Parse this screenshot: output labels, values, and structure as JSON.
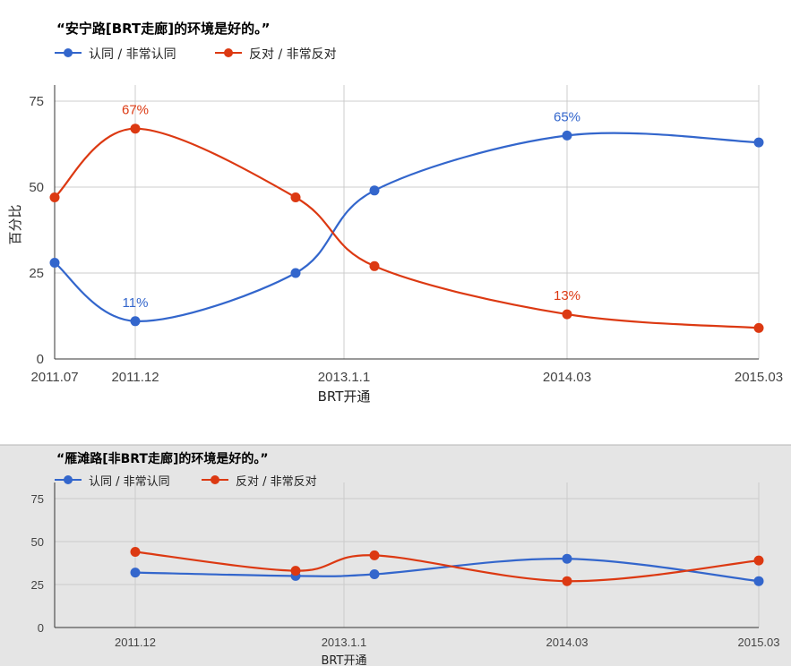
{
  "chart_data": [
    {
      "type": "line",
      "title": "“安宁路[BRT走廊]的环境是好的。”",
      "xlabel": "BRT开通",
      "ylabel": "百分比",
      "ylim": [
        0,
        75
      ],
      "yticks": [
        0,
        25,
        50,
        75
      ],
      "x_ticks": [
        "2011.07",
        "2011.12",
        "2013.1.1",
        "2014.03",
        "2015.03"
      ],
      "background": "#ffffff",
      "legend": "top-left",
      "grid": true,
      "series": [
        {
          "name": "认同 / 非常认同",
          "color": "#3366cc",
          "x": [
            "2011.07",
            "2011.12",
            "2012.10",
            "2013.02",
            "2014.03",
            "2015.03"
          ],
          "values": [
            28,
            11,
            25,
            49,
            65,
            63
          ],
          "labels": [
            "",
            "11%",
            "",
            "",
            "65%",
            ""
          ]
        },
        {
          "name": "反对 / 非常反对",
          "color": "#dc3912",
          "x": [
            "2011.07",
            "2011.12",
            "2012.10",
            "2013.02",
            "2014.03",
            "2015.03"
          ],
          "values": [
            47,
            67,
            47,
            27,
            13,
            9
          ],
          "labels": [
            "",
            "67%",
            "",
            "",
            "13%",
            ""
          ]
        }
      ]
    },
    {
      "type": "line",
      "title": "“雁滩路[非BRT走廊]的环境是好的。”",
      "xlabel": "BRT开通",
      "ylabel": "",
      "ylim": [
        0,
        75
      ],
      "yticks": [
        0,
        25,
        50,
        75
      ],
      "x_ticks": [
        "2011.12",
        "2013.1.1",
        "2014.03",
        "2015.03"
      ],
      "background": "#e5e5e5",
      "legend": "top-left",
      "grid": true,
      "series": [
        {
          "name": "认同 / 非常认同",
          "color": "#3366cc",
          "x": [
            "2011.12",
            "2012.10",
            "2013.02",
            "2014.03",
            "2015.03"
          ],
          "values": [
            32,
            30,
            31,
            40,
            27
          ]
        },
        {
          "name": "反对 / 非常反对",
          "color": "#dc3912",
          "x": [
            "2011.12",
            "2012.10",
            "2013.02",
            "2014.03",
            "2015.03"
          ],
          "values": [
            44,
            33,
            42,
            27,
            39
          ]
        }
      ]
    }
  ]
}
